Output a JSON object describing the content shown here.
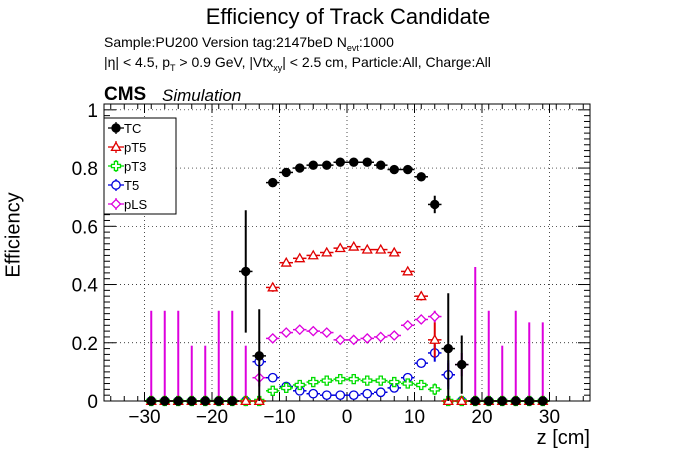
{
  "title": "Efficiency of Track Candidate",
  "sample_line": "Sample:PU200   Version tag:2147beD  N",
  "sample_sub": "evt",
  "sample_end": ":1000",
  "cuts": {
    "a": "|η| < 4.5, p",
    "a_sub": "T",
    "b": " > 0.9 GeV, |Vtx",
    "b_sub": "xy",
    "c": "| < 2.5 cm, Particle:All, Charge:All"
  },
  "cms_label": "CMS",
  "sim_label": "Simulation",
  "chart_data": {
    "type": "scatter",
    "xlabel": "z [cm]",
    "ylabel": "Efficiency",
    "xlim": [
      -36,
      36
    ],
    "ylim": [
      0,
      1.02
    ],
    "xticks": [
      -30,
      -20,
      -10,
      0,
      10,
      20,
      30
    ],
    "yticks": [
      0,
      0.2,
      0.4,
      0.6,
      0.8,
      1
    ],
    "xtick_labels": [
      "−30",
      "−20",
      "−10",
      "0",
      "10",
      "20",
      "30"
    ],
    "ytick_labels": [
      "0",
      "0.2",
      "0.4",
      "0.6",
      "0.8",
      "1"
    ],
    "legend_position": "top-left",
    "series": [
      {
        "name": "TC",
        "color": "#000000",
        "marker": "filled-circle",
        "points": [
          [
            -29,
            0,
            0
          ],
          [
            -27,
            0,
            0
          ],
          [
            -25,
            0,
            0
          ],
          [
            -23,
            0,
            0
          ],
          [
            -21,
            0,
            0
          ],
          [
            -19,
            0,
            0
          ],
          [
            -17,
            0,
            0
          ],
          [
            -15,
            0.445,
            0.21
          ],
          [
            -13,
            0.155,
            0.16
          ],
          [
            -11,
            0.75,
            0.015
          ],
          [
            -9,
            0.785,
            0.01
          ],
          [
            -7,
            0.8,
            0.01
          ],
          [
            -5,
            0.81,
            0.01
          ],
          [
            -3,
            0.81,
            0.01
          ],
          [
            -1,
            0.82,
            0.01
          ],
          [
            1,
            0.82,
            0.01
          ],
          [
            3,
            0.82,
            0.01
          ],
          [
            5,
            0.81,
            0.01
          ],
          [
            7,
            0.795,
            0.01
          ],
          [
            9,
            0.795,
            0.01
          ],
          [
            11,
            0.77,
            0.015
          ],
          [
            13,
            0.675,
            0.03
          ],
          [
            15,
            0.18,
            0.19
          ],
          [
            17,
            0.125,
            0.1
          ],
          [
            19,
            0,
            0
          ],
          [
            21,
            0,
            0
          ],
          [
            23,
            0,
            0
          ],
          [
            25,
            0,
            0
          ],
          [
            27,
            0,
            0
          ],
          [
            29,
            0,
            0
          ]
        ]
      },
      {
        "name": "pT5",
        "color": "#e00000",
        "marker": "open-triangle",
        "points": [
          [
            -29,
            0,
            0
          ],
          [
            -27,
            0,
            0
          ],
          [
            -25,
            0,
            0
          ],
          [
            -23,
            0,
            0
          ],
          [
            -21,
            0,
            0
          ],
          [
            -19,
            0,
            0
          ],
          [
            -17,
            0,
            0
          ],
          [
            -15,
            0,
            0
          ],
          [
            -13,
            0,
            0
          ],
          [
            -11,
            0.39,
            0.015
          ],
          [
            -9,
            0.475,
            0.01
          ],
          [
            -7,
            0.49,
            0.01
          ],
          [
            -5,
            0.5,
            0.01
          ],
          [
            -3,
            0.51,
            0.01
          ],
          [
            -1,
            0.525,
            0.01
          ],
          [
            1,
            0.53,
            0.01
          ],
          [
            3,
            0.52,
            0.01
          ],
          [
            5,
            0.52,
            0.01
          ],
          [
            7,
            0.51,
            0.01
          ],
          [
            9,
            0.445,
            0.01
          ],
          [
            11,
            0.36,
            0.015
          ],
          [
            13,
            0.21,
            0.06
          ],
          [
            15,
            0,
            0
          ],
          [
            17,
            0,
            0
          ],
          [
            19,
            0,
            0
          ],
          [
            21,
            0,
            0
          ],
          [
            23,
            0,
            0
          ],
          [
            25,
            0,
            0
          ],
          [
            27,
            0,
            0
          ],
          [
            29,
            0,
            0
          ]
        ]
      },
      {
        "name": "pT3",
        "color": "#00dd00",
        "marker": "open-cross",
        "points": [
          [
            -29,
            0,
            0
          ],
          [
            -27,
            0,
            0
          ],
          [
            -25,
            0,
            0
          ],
          [
            -23,
            0,
            0
          ],
          [
            -21,
            0,
            0
          ],
          [
            -19,
            0,
            0
          ],
          [
            -17,
            0,
            0
          ],
          [
            -15,
            0,
            0
          ],
          [
            -13,
            0,
            0
          ],
          [
            -11,
            0.035,
            0.01
          ],
          [
            -9,
            0.045,
            0.01
          ],
          [
            -7,
            0.055,
            0.005
          ],
          [
            -5,
            0.065,
            0.005
          ],
          [
            -3,
            0.07,
            0.005
          ],
          [
            -1,
            0.075,
            0.005
          ],
          [
            1,
            0.075,
            0.005
          ],
          [
            3,
            0.07,
            0.005
          ],
          [
            5,
            0.07,
            0.005
          ],
          [
            7,
            0.065,
            0.005
          ],
          [
            9,
            0.06,
            0.01
          ],
          [
            11,
            0.055,
            0.01
          ],
          [
            13,
            0.04,
            0.02
          ],
          [
            15,
            0,
            0
          ],
          [
            17,
            0,
            0
          ],
          [
            19,
            0,
            0
          ],
          [
            21,
            0,
            0
          ],
          [
            23,
            0,
            0
          ],
          [
            25,
            0,
            0
          ],
          [
            27,
            0,
            0
          ],
          [
            29,
            0,
            0
          ]
        ]
      },
      {
        "name": "T5",
        "color": "#0000dd",
        "marker": "open-circle",
        "points": [
          [
            -29,
            0,
            0
          ],
          [
            -27,
            0,
            0
          ],
          [
            -25,
            0,
            0
          ],
          [
            -23,
            0,
            0
          ],
          [
            -21,
            0,
            0
          ],
          [
            -19,
            0,
            0
          ],
          [
            -17,
            0,
            0
          ],
          [
            -15,
            0,
            0
          ],
          [
            -13,
            0.135,
            0.03
          ],
          [
            -11,
            0.08,
            0.015
          ],
          [
            -9,
            0.05,
            0.01
          ],
          [
            -7,
            0.035,
            0.005
          ],
          [
            -5,
            0.025,
            0.005
          ],
          [
            -3,
            0.02,
            0.005
          ],
          [
            -1,
            0.02,
            0.005
          ],
          [
            1,
            0.02,
            0.005
          ],
          [
            3,
            0.025,
            0.005
          ],
          [
            5,
            0.03,
            0.005
          ],
          [
            7,
            0.045,
            0.01
          ],
          [
            9,
            0.08,
            0.01
          ],
          [
            11,
            0.13,
            0.015
          ],
          [
            13,
            0.165,
            0.03
          ],
          [
            15,
            0.09,
            0.05
          ],
          [
            17,
            0,
            0
          ],
          [
            19,
            0,
            0
          ],
          [
            21,
            0,
            0
          ],
          [
            23,
            0,
            0
          ],
          [
            25,
            0,
            0
          ],
          [
            27,
            0,
            0
          ],
          [
            29,
            0,
            0
          ]
        ]
      },
      {
        "name": "pLS",
        "color": "#dd00dd",
        "marker": "open-diamond",
        "points": [
          [
            -29,
            0,
            0.31
          ],
          [
            -27,
            0,
            0.31
          ],
          [
            -25,
            0,
            0.31
          ],
          [
            -23,
            0,
            0.19
          ],
          [
            -21,
            0,
            0.19
          ],
          [
            -19,
            0,
            0.31
          ],
          [
            -17,
            0,
            0.31
          ],
          [
            -15,
            0,
            0.19
          ],
          [
            -13,
            0.08,
            0.03
          ],
          [
            -11,
            0.215,
            0.015
          ],
          [
            -9,
            0.235,
            0.01
          ],
          [
            -7,
            0.245,
            0.01
          ],
          [
            -5,
            0.24,
            0.005
          ],
          [
            -3,
            0.235,
            0.005
          ],
          [
            -1,
            0.21,
            0.005
          ],
          [
            1,
            0.21,
            0.005
          ],
          [
            3,
            0.215,
            0.005
          ],
          [
            5,
            0.22,
            0.005
          ],
          [
            7,
            0.225,
            0.01
          ],
          [
            9,
            0.26,
            0.01
          ],
          [
            11,
            0.28,
            0.015
          ],
          [
            13,
            0.29,
            0.02
          ],
          [
            15,
            0.09,
            0.04
          ],
          [
            17,
            0.125,
            0.04
          ],
          [
            19,
            0,
            0.46
          ],
          [
            21,
            0,
            0.31
          ],
          [
            23,
            0,
            0.19
          ],
          [
            25,
            0,
            0.31
          ],
          [
            27,
            0,
            0.27
          ],
          [
            29,
            0,
            0.27
          ]
        ]
      }
    ]
  }
}
